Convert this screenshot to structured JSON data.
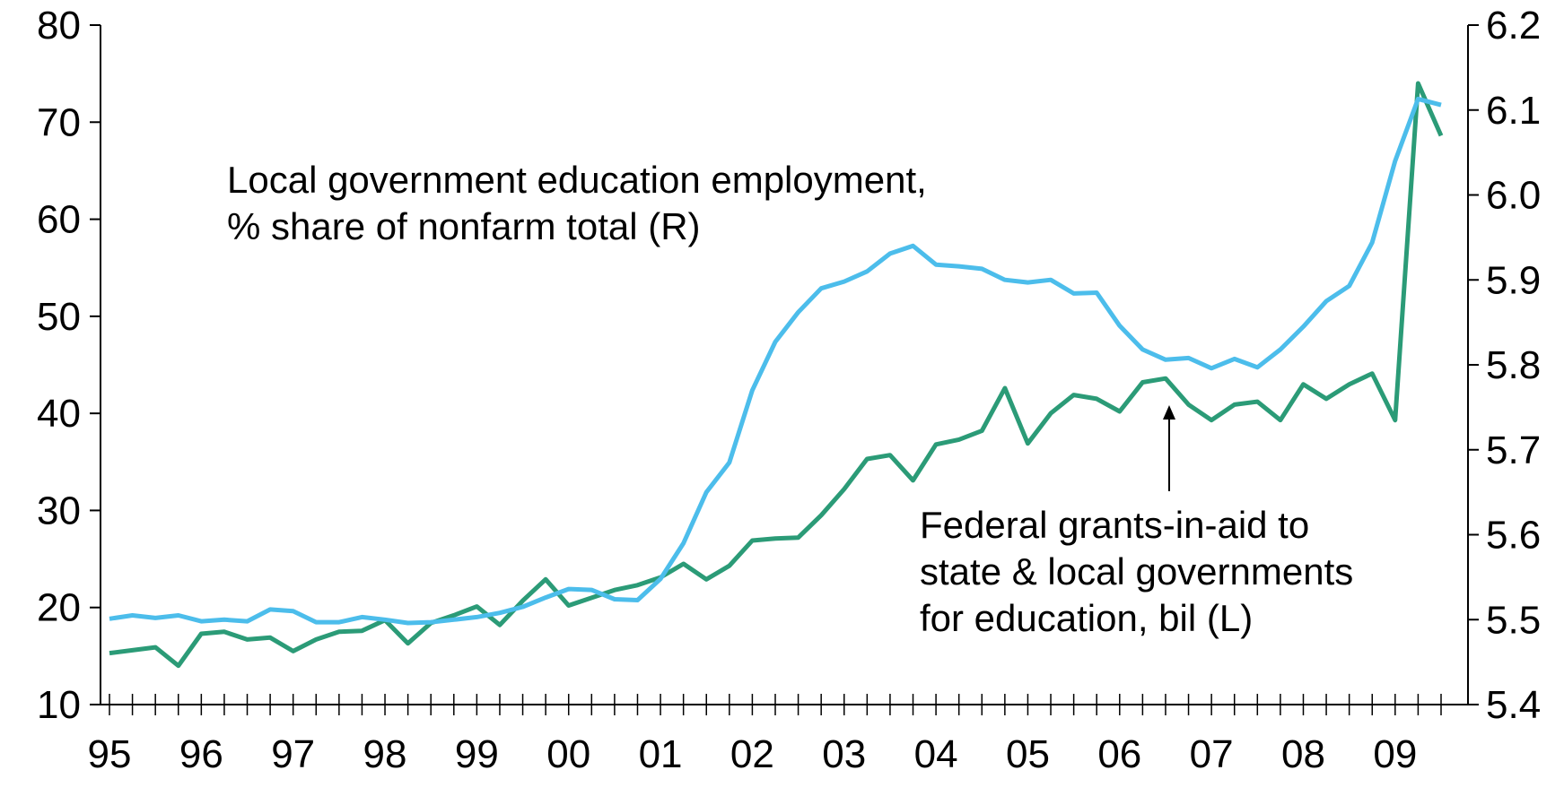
{
  "chart_data": {
    "type": "line",
    "categories": [
      "95",
      null,
      null,
      null,
      "96",
      null,
      null,
      null,
      "97",
      null,
      null,
      null,
      "98",
      null,
      null,
      null,
      "99",
      null,
      null,
      null,
      "00",
      null,
      null,
      null,
      "01",
      null,
      null,
      null,
      "02",
      null,
      null,
      null,
      "03",
      null,
      null,
      null,
      "04",
      null,
      null,
      null,
      "05",
      null,
      null,
      null,
      "06",
      null,
      null,
      null,
      "07",
      null,
      null,
      null,
      "08",
      null,
      null,
      null,
      "09",
      null,
      null
    ],
    "series": [
      {
        "name": [
          "Federal grants-in-aid to",
          "state & local governments",
          "for education, bil (L)"
        ],
        "color": "#2b9b77",
        "axis": "y",
        "values": [
          15.3,
          15.6,
          15.9,
          14.0,
          17.3,
          17.5,
          16.7,
          16.9,
          15.5,
          16.7,
          17.5,
          17.6,
          18.7,
          16.3,
          18.4,
          19.2,
          20.1,
          18.2,
          20.7,
          22.9,
          20.2,
          21.0,
          21.8,
          22.3,
          23.1,
          24.5,
          22.9,
          24.3,
          26.9,
          27.1,
          27.2,
          29.5,
          32.2,
          35.3,
          35.7,
          33.1,
          36.8,
          37.3,
          38.2,
          42.6,
          36.9,
          40.0,
          41.9,
          41.5,
          40.2,
          43.2,
          43.6,
          40.9,
          39.3,
          40.9,
          41.2,
          39.3,
          43.0,
          41.5,
          43.0,
          44.1,
          39.3,
          74.0,
          68.6
        ]
      },
      {
        "name": [
          "Local government education employment,",
          "% share of nonfarm total (R)"
        ],
        "color": "#4cbdeb",
        "axis": "y2",
        "values": [
          5.501,
          5.505,
          5.502,
          5.505,
          5.498,
          5.5,
          5.498,
          5.512,
          5.51,
          5.497,
          5.497,
          5.503,
          5.5,
          5.496,
          5.497,
          5.5,
          5.503,
          5.508,
          5.515,
          5.526,
          5.536,
          5.535,
          5.524,
          5.523,
          5.548,
          5.59,
          5.65,
          5.685,
          5.77,
          5.827,
          5.862,
          5.89,
          5.898,
          5.91,
          5.931,
          5.94,
          5.918,
          5.916,
          5.913,
          5.9,
          5.897,
          5.9,
          5.884,
          5.885,
          5.846,
          5.818,
          5.806,
          5.808,
          5.796,
          5.807,
          5.797,
          5.818,
          5.845,
          5.875,
          5.893,
          5.944,
          6.04,
          6.113,
          6.106
        ]
      }
    ],
    "ylim": [
      10,
      80
    ],
    "yticks": [
      10,
      20,
      30,
      40,
      50,
      60,
      70,
      80
    ],
    "y2lim": [
      5.4,
      6.2
    ],
    "y2ticks": [
      5.4,
      5.5,
      5.6,
      5.7,
      5.8,
      5.9,
      {
        "value": 6.0,
        "label": "6.0"
      },
      6.1,
      6.2
    ]
  }
}
